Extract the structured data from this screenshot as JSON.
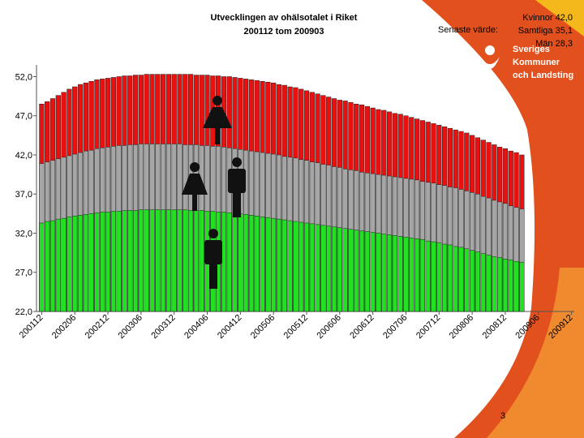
{
  "chart_data": {
    "type": "overlapping-bar",
    "title": "Utvecklingen av ohälsotalet i Riket",
    "subtitle": "200112 tom 200903",
    "latest": {
      "label": "Senaste värde:",
      "entries": [
        "Kvinnor 42,0",
        "Samtliga 35,1",
        "Män 28,3"
      ]
    },
    "categories": [
      "200112",
      null,
      null,
      null,
      null,
      null,
      "200206",
      null,
      null,
      null,
      null,
      null,
      "200212",
      null,
      null,
      null,
      null,
      null,
      "200306",
      null,
      null,
      null,
      null,
      null,
      "200312",
      null,
      null,
      null,
      null,
      null,
      "200406",
      null,
      null,
      null,
      null,
      null,
      "200412",
      null,
      null,
      null,
      null,
      null,
      "200506",
      null,
      null,
      null,
      null,
      null,
      "200512",
      null,
      null,
      null,
      null,
      null,
      "200606",
      null,
      null,
      null,
      null,
      null,
      "200612",
      null,
      null,
      null,
      null,
      null,
      "200706",
      null,
      null,
      null,
      null,
      null,
      "200712",
      null,
      null,
      null,
      null,
      null,
      "200806",
      null,
      null,
      null,
      null,
      null,
      "200812",
      null,
      null,
      null,
      null,
      null,
      "200906",
      null,
      null,
      null,
      null,
      null,
      "200912"
    ],
    "series": [
      {
        "color": "#e8110f",
        "values": [
          48.5,
          48.8,
          49.2,
          49.6,
          50.0,
          50.4,
          50.7,
          51.0,
          51.2,
          51.4,
          51.6,
          51.7,
          51.8,
          51.9,
          52.0,
          52.1,
          52.1,
          52.2,
          52.2,
          52.3,
          52.3,
          52.3,
          52.3,
          52.3,
          52.3,
          52.3,
          52.3,
          52.3,
          52.2,
          52.2,
          52.2,
          52.1,
          52.1,
          52.0,
          52.0,
          51.9,
          51.8,
          51.7,
          51.6,
          51.5,
          51.4,
          51.3,
          51.2,
          51.0,
          50.9,
          50.7,
          50.6,
          50.4,
          50.2,
          50.0,
          49.8,
          49.6,
          49.4,
          49.2,
          49.0,
          48.9,
          48.7,
          48.5,
          48.4,
          48.2,
          48.0,
          47.8,
          47.7,
          47.5,
          47.3,
          47.2,
          47.0,
          46.8,
          46.6,
          46.4,
          46.2,
          46.0,
          45.8,
          45.6,
          45.4,
          45.2,
          45.0,
          44.8,
          44.5,
          44.2,
          43.9,
          43.6,
          43.3,
          43.0,
          42.8,
          42.5,
          42.3,
          42.0,
          null,
          null,
          null,
          null,
          null,
          null,
          null,
          null,
          null
        ]
      },
      {
        "color": "#a6a6a6",
        "values": [
          40.9,
          41.1,
          41.3,
          41.5,
          41.7,
          41.9,
          42.1,
          42.3,
          42.5,
          42.6,
          42.8,
          42.9,
          43.0,
          43.1,
          43.2,
          43.2,
          43.3,
          43.3,
          43.4,
          43.4,
          43.4,
          43.4,
          43.4,
          43.4,
          43.4,
          43.4,
          43.3,
          43.3,
          43.3,
          43.2,
          43.2,
          43.1,
          43.1,
          43.0,
          42.9,
          42.8,
          42.7,
          42.6,
          42.5,
          42.4,
          42.3,
          42.2,
          42.1,
          42.0,
          41.8,
          41.7,
          41.6,
          41.4,
          41.3,
          41.1,
          41.0,
          40.8,
          40.7,
          40.5,
          40.4,
          40.2,
          40.1,
          40.0,
          39.8,
          39.7,
          39.6,
          39.5,
          39.4,
          39.3,
          39.2,
          39.1,
          39.0,
          38.9,
          38.8,
          38.6,
          38.5,
          38.4,
          38.2,
          38.1,
          37.9,
          37.8,
          37.6,
          37.4,
          37.2,
          37.0,
          36.7,
          36.5,
          36.2,
          36.0,
          35.8,
          35.5,
          35.3,
          35.1,
          null,
          null,
          null,
          null,
          null,
          null,
          null,
          null,
          null
        ]
      },
      {
        "color": "#22e022",
        "values": [
          33.3,
          33.5,
          33.6,
          33.8,
          33.9,
          34.1,
          34.2,
          34.3,
          34.4,
          34.5,
          34.6,
          34.7,
          34.7,
          34.8,
          34.8,
          34.9,
          34.9,
          34.9,
          35.0,
          35.0,
          35.0,
          35.0,
          35.0,
          35.0,
          35.0,
          35.0,
          35.0,
          34.9,
          34.9,
          34.9,
          34.8,
          34.8,
          34.7,
          34.7,
          34.6,
          34.5,
          34.5,
          34.4,
          34.3,
          34.2,
          34.1,
          34.0,
          33.9,
          33.8,
          33.7,
          33.6,
          33.5,
          33.4,
          33.3,
          33.2,
          33.1,
          33.0,
          32.9,
          32.8,
          32.7,
          32.6,
          32.5,
          32.4,
          32.3,
          32.2,
          32.1,
          32.0,
          31.9,
          31.8,
          31.7,
          31.6,
          31.5,
          31.4,
          31.3,
          31.2,
          31.0,
          30.9,
          30.8,
          30.6,
          30.5,
          30.3,
          30.2,
          30.0,
          29.8,
          29.6,
          29.4,
          29.2,
          29.0,
          28.9,
          28.7,
          28.6,
          28.4,
          28.3,
          null,
          null,
          null,
          null,
          null,
          null,
          null,
          null,
          null
        ]
      }
    ],
    "ylim": [
      22,
      53.5
    ],
    "yticks": [
      {
        "value": 22,
        "label": "22,0"
      },
      {
        "value": 27,
        "label": "27,0"
      },
      {
        "value": 32,
        "label": "32,0"
      },
      {
        "value": 37,
        "label": "37,0"
      },
      {
        "value": 42,
        "label": "42,0"
      },
      {
        "value": 47,
        "label": "47,0"
      },
      {
        "value": 52,
        "label": "52,0"
      }
    ]
  },
  "logo": [
    "Sveriges",
    "Kommuner",
    "och Landsting"
  ],
  "page_number": "3"
}
